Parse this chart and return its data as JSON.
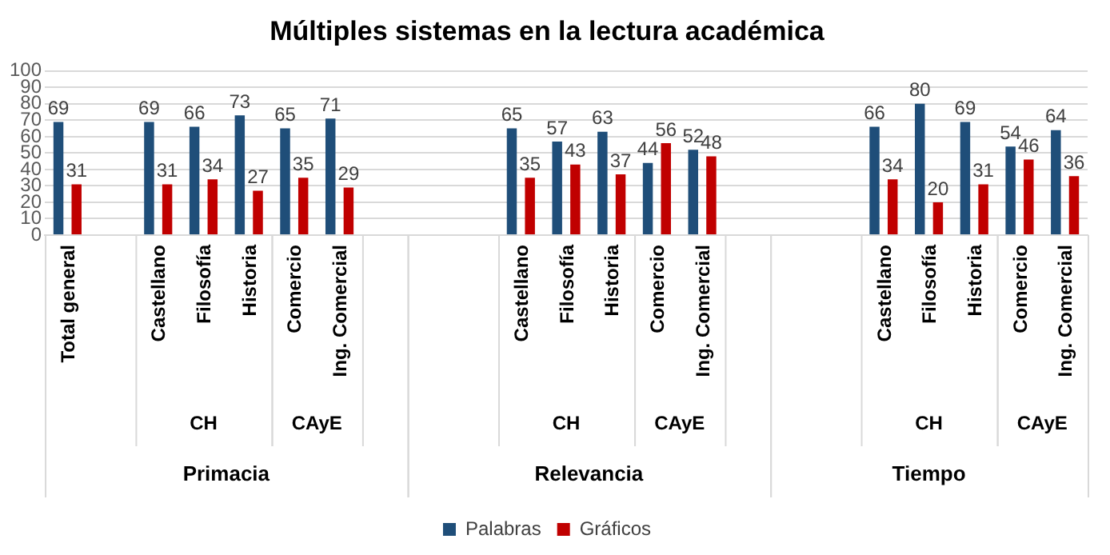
{
  "chart_data": {
    "type": "bar",
    "title": "Múltiples sistemas en la lectura académica",
    "categories": [
      "Total general",
      null,
      "Castellano",
      "Filosofía",
      "Historia",
      "Comercio",
      "Ing. Comercial",
      null,
      null,
      null,
      "Castellano",
      "Filosofía",
      "Historia",
      "Comercio",
      "Ing. Comercial",
      null,
      null,
      null,
      "Castellano",
      "Filosofía",
      "Historia",
      "Comercio",
      "Ing. Comercial"
    ],
    "series": [
      {
        "name": "Palabras",
        "color": "#1f4e79",
        "values": [
          69,
          null,
          69,
          66,
          73,
          65,
          71,
          null,
          null,
          null,
          65,
          57,
          63,
          44,
          52,
          null,
          null,
          null,
          66,
          80,
          69,
          54,
          64
        ]
      },
      {
        "name": "Gráficos",
        "color": "#c00000",
        "values": [
          31,
          null,
          31,
          34,
          27,
          35,
          29,
          null,
          null,
          null,
          35,
          43,
          37,
          56,
          48,
          null,
          null,
          null,
          34,
          20,
          31,
          46,
          36
        ]
      }
    ],
    "annotations": [
      "CH",
      "CAyE",
      "Primacia",
      "CH",
      "CAyE",
      "Relevancia",
      "CH",
      "CAyE",
      "Tiempo"
    ],
    "ylim": [
      0,
      100
    ],
    "yticks": [
      0,
      10,
      20,
      30,
      40,
      50,
      60,
      70,
      80,
      90,
      100
    ],
    "grid": "y",
    "legend": "bottom",
    "data_labels": true
  }
}
